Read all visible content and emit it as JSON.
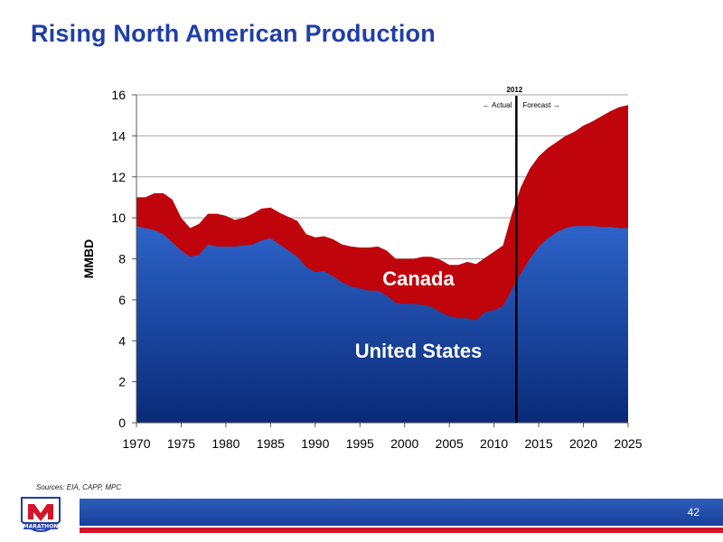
{
  "title": "Rising North American Production",
  "source": "Sources:  EIA, CAPP, MPC",
  "page_number": "42",
  "logo": {
    "text": "MARATHON",
    "colors": {
      "red": "#d3142b",
      "blue": "#1f3ea8"
    }
  },
  "colors": {
    "canada": "#c0040c",
    "us_top": "#2d63c8",
    "us_bottom": "#0a2a78",
    "title": "#1f3ea8"
  },
  "chart_data": {
    "type": "area",
    "stacked": true,
    "x": [
      1970,
      1971,
      1972,
      1973,
      1974,
      1975,
      1976,
      1977,
      1978,
      1979,
      1980,
      1981,
      1982,
      1983,
      1984,
      1985,
      1986,
      1987,
      1988,
      1989,
      1990,
      1991,
      1992,
      1993,
      1994,
      1995,
      1996,
      1997,
      1998,
      1999,
      2000,
      2001,
      2002,
      2003,
      2004,
      2005,
      2006,
      2007,
      2008,
      2009,
      2010,
      2011,
      2012,
      2013,
      2014,
      2015,
      2016,
      2017,
      2018,
      2019,
      2020,
      2021,
      2022,
      2023,
      2024,
      2025
    ],
    "series": [
      {
        "name": "United States",
        "values": [
          9.6,
          9.5,
          9.4,
          9.2,
          8.8,
          8.4,
          8.1,
          8.2,
          8.7,
          8.6,
          8.6,
          8.6,
          8.65,
          8.7,
          8.9,
          9.0,
          8.7,
          8.4,
          8.1,
          7.6,
          7.35,
          7.4,
          7.15,
          6.85,
          6.65,
          6.55,
          6.45,
          6.45,
          6.2,
          5.85,
          5.8,
          5.8,
          5.75,
          5.65,
          5.4,
          5.2,
          5.1,
          5.1,
          5.0,
          5.4,
          5.5,
          5.7,
          6.5,
          7.3,
          8.0,
          8.6,
          9.0,
          9.3,
          9.5,
          9.6,
          9.6,
          9.6,
          9.55,
          9.55,
          9.5,
          9.5
        ]
      },
      {
        "name": "Canada",
        "values": [
          1.4,
          1.5,
          1.8,
          2.0,
          2.1,
          1.6,
          1.4,
          1.5,
          1.5,
          1.6,
          1.5,
          1.3,
          1.35,
          1.5,
          1.55,
          1.5,
          1.55,
          1.65,
          1.75,
          1.6,
          1.7,
          1.7,
          1.8,
          1.85,
          1.95,
          2.0,
          2.1,
          2.15,
          2.2,
          2.15,
          2.2,
          2.2,
          2.35,
          2.45,
          2.55,
          2.5,
          2.6,
          2.75,
          2.75,
          2.65,
          2.85,
          2.95,
          3.7,
          4.2,
          4.4,
          4.4,
          4.4,
          4.4,
          4.5,
          4.6,
          4.9,
          5.1,
          5.4,
          5.65,
          5.9,
          6.0
        ]
      }
    ],
    "ylabel": "MMBD",
    "xlabel": "",
    "ylim": [
      0,
      16
    ],
    "yticks": [
      0,
      2,
      4,
      6,
      8,
      10,
      12,
      14,
      16
    ],
    "xlim": [
      1970,
      2025
    ],
    "xticks": [
      1970,
      1975,
      1980,
      1985,
      1990,
      1995,
      2000,
      2005,
      2010,
      2015,
      2020,
      2025
    ],
    "grid": "horizontal",
    "annotations": {
      "divider_year": 2012.5,
      "divider_label": "2012",
      "actual_label": "← Actual",
      "forecast_label": "Forecast →",
      "canada_label": "Canada",
      "us_label": "United States"
    }
  }
}
